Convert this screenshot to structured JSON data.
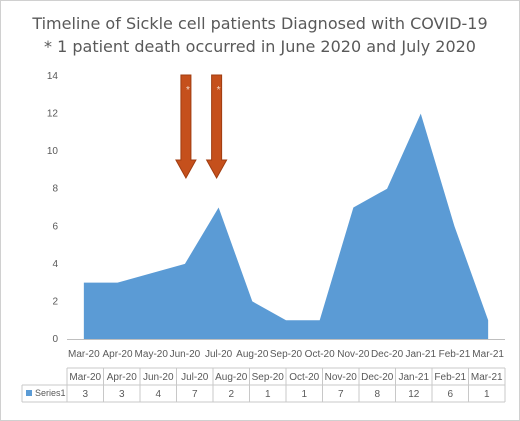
{
  "chart_data": {
    "type": "area",
    "title": "Timeline of Sickle cell patients Diagnosed with COVID-19",
    "subtitle": "* 1 patient death occurred in June 2020 and July 2020",
    "categories": [
      "Mar-20",
      "Apr-20",
      "May-20",
      "Jun-20",
      "Jul-20",
      "Aug-20",
      "Sep-20",
      "Oct-20",
      "Nov-20",
      "Dec-20",
      "Jan-21",
      "Feb-21",
      "Mar-21"
    ],
    "series": [
      {
        "name": "Series1",
        "values": [
          3,
          3,
          null,
          4,
          7,
          2,
          1,
          1,
          7,
          8,
          12,
          6,
          1
        ]
      }
    ],
    "plotted_values": [
      3,
      3,
      3.5,
      4,
      7,
      2,
      1,
      1,
      7,
      8,
      12,
      6,
      1
    ],
    "table_headers": [
      "Mar-20",
      "Apr-20",
      "Jun-20",
      "Jul-20",
      "Aug-20",
      "Sep-20",
      "Oct-20",
      "Nov-20",
      "Dec-20",
      "Jan-21",
      "Feb-21",
      "Mar-21"
    ],
    "table_values": [
      "3",
      "3",
      "4",
      "7",
      "2",
      "1",
      "1",
      "7",
      "8",
      "12",
      "6",
      "1"
    ],
    "ylim": [
      0,
      14
    ],
    "yticks": [
      "0",
      "2",
      "4",
      "6",
      "8",
      "10",
      "12",
      "14"
    ],
    "grid": false,
    "legend": "data-table",
    "annotations": [
      {
        "category": "Jun-20",
        "symbol": "*",
        "marker": "down-arrow"
      },
      {
        "category": "Jul-20",
        "symbol": "*",
        "marker": "down-arrow"
      }
    ],
    "colors": {
      "area": "#5b9bd5",
      "arrow_fill": "#c5501c",
      "arrow_stroke": "#a03c10",
      "text": "#595959"
    }
  }
}
